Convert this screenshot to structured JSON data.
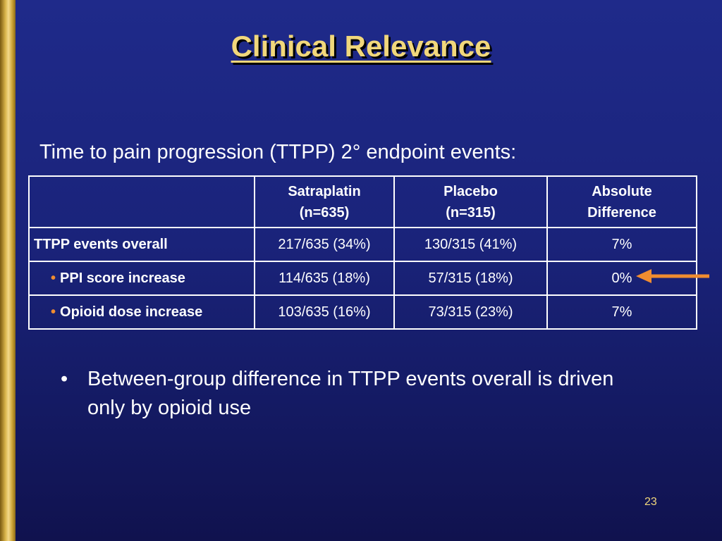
{
  "slide": {
    "title": "Clinical Relevance",
    "subtitle": "Time to pain progression (TTPP) 2° endpoint events:",
    "page_number": "23"
  },
  "table": {
    "columns": [
      {
        "line1": "",
        "line2": ""
      },
      {
        "line1": "Satraplatin",
        "line2": "(n=635)"
      },
      {
        "line1": "Placebo",
        "line2": "(n=315)"
      },
      {
        "line1": "Absolute",
        "line2": "Difference"
      }
    ],
    "rows": [
      {
        "label": "TTPP events overall",
        "bullet": "",
        "satraplatin": "217/635 (34%)",
        "placebo": "130/315 (41%)",
        "difference": "7%"
      },
      {
        "label": "PPI score increase",
        "bullet": "•",
        "satraplatin": "114/635 (18%)",
        "placebo": "57/315 (18%)",
        "difference": "0%"
      },
      {
        "label": "Opioid dose increase",
        "bullet": "•",
        "satraplatin": "103/635 (16%)",
        "placebo": "73/315 (23%)",
        "difference": "7%"
      }
    ]
  },
  "note": {
    "bullet": "•",
    "text": "Between-group difference in TTPP events overall is driven only by opioid use"
  },
  "icons": {
    "highlight_arrow": "left-arrow-icon"
  },
  "colors": {
    "title": "#f1d77b",
    "arrow": "#f08c30",
    "background": "#1a237a"
  }
}
